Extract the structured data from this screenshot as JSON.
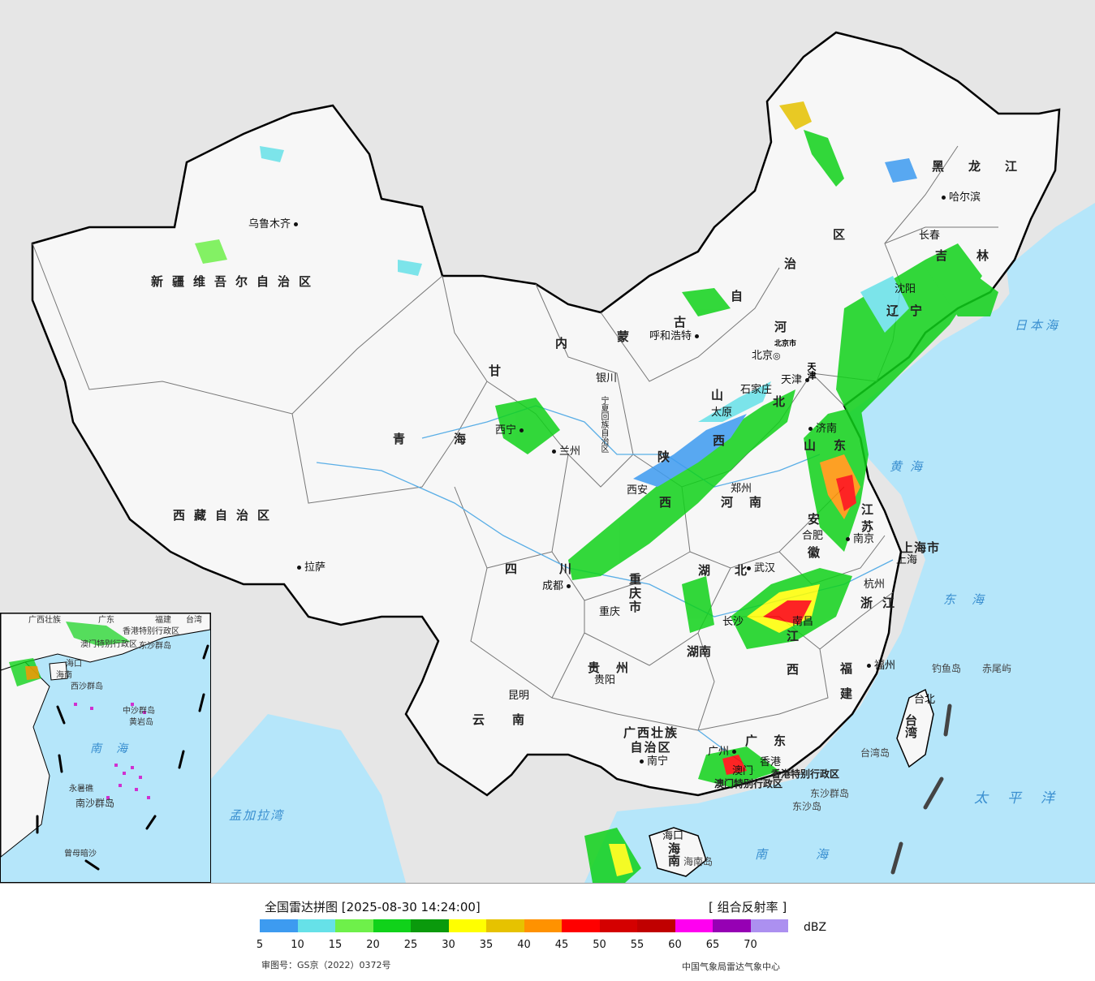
{
  "legend": {
    "title": "全国雷达拼图 [2025-08-30 14:24:00]",
    "product": "[ 组合反射率 ]",
    "unit": "dBZ",
    "ticks": [
      "5",
      "10",
      "15",
      "20",
      "25",
      "30",
      "35",
      "40",
      "45",
      "50",
      "55",
      "60",
      "65",
      "70"
    ],
    "colors": [
      "#3d9bf0",
      "#66e1e8",
      "#6ef04a",
      "#10d21a",
      "#0a9a0c",
      "#ffff00",
      "#e6c200",
      "#ff9200",
      "#ff0000",
      "#d40000",
      "#c00000",
      "#ff00f0",
      "#9600b4",
      "#ac90f0"
    ],
    "approval": "审图号：GS京（2022）0372号",
    "source": "中国气象局雷达气象中心"
  },
  "colors": {
    "land": "#f7f7f7",
    "outside": "#e6e6e6",
    "sea": "#b5e6fa",
    "border": "#000000",
    "province_border": "#777777",
    "river": "#5aaee6"
  },
  "provinces": {
    "xinjiang": "新疆维吾尔自治区",
    "xizang": "西藏自治区",
    "qinghai": "青海",
    "neimenggu_1": "内",
    "neimenggu_2": "蒙",
    "neimenggu_3": "古",
    "neimenggu_4": "自",
    "neimenggu_5": "治",
    "neimenggu_6": "区",
    "heilongjiang": "黑龙江",
    "jilin": "吉林",
    "liaoning": "辽宁",
    "gansu": "甘",
    "ningxia": "宁夏回族自治区",
    "shaanxi": "陕",
    "shaanxi2": "西",
    "shanxi": "山",
    "shanxi2": "西",
    "hebei": "河",
    "hebei2": "北",
    "shandong": "山东",
    "henan": "河南",
    "jiangsu": "江苏",
    "anhui": "安徽",
    "hubei": "湖北",
    "hunan": "湖南",
    "jiangxi": "江西",
    "zhejiang": "浙江",
    "fujian": "福建",
    "guangdong": "广东",
    "guangxi": "广西壮族自治区",
    "guizhou": "贵州",
    "yunnan": "云南",
    "sichuan": "四川",
    "chongqing": "重庆市",
    "hainan": "海南",
    "taiwan": "台湾",
    "shanghai": "上海市",
    "tianjin": "天津",
    "beijing": "北京市",
    "hongkong": "香港特别行政区",
    "macau": "澳门特别行政区"
  },
  "cities": {
    "urumqi": "乌鲁木齐",
    "lhasa": "拉萨",
    "xining": "西宁",
    "lanzhou": "兰州",
    "yinchuan": "银川",
    "hohhot": "呼和浩特",
    "beijing": "北京",
    "tianjin": "天津",
    "shijiazhuang": "石家庄",
    "taiyuan": "太原",
    "xian": "西安",
    "zhengzhou": "郑州",
    "jinan": "济南",
    "harbin": "哈尔滨",
    "changchun": "长春",
    "shenyang": "沈阳",
    "hefei": "合肥",
    "nanjing": "南京",
    "shanghai": "上海",
    "hangzhou": "杭州",
    "wuhan": "武汉",
    "changsha": "长沙",
    "nanchang": "南昌",
    "fuzhou": "福州",
    "taipei": "台北",
    "guangzhou": "广州",
    "hongkong": "香港",
    "macau": "澳门",
    "nanning": "南宁",
    "haikou": "海口",
    "guiyang": "贵阳",
    "kunming": "昆明",
    "chengdu": "成都",
    "chongqing": "重庆"
  },
  "seas": {
    "huanghai": "黄海",
    "donghai": "东海",
    "nanhai": "南海",
    "taipingyang": "太平洋",
    "ribenhai": "日本海",
    "mengjiala": "孟加拉湾",
    "inset_nanhai": "南海"
  },
  "islands": {
    "diaoyu": "钓鱼岛",
    "chiwei": "赤尾屿",
    "dongsha": "东沙群岛",
    "dongsha2": "东沙岛",
    "taiwan_island": "台湾岛",
    "hainan_island": "海南岛",
    "inset_xisha": "西沙群岛",
    "inset_zhongsha": "中沙群岛",
    "inset_huangyan": "黄岩岛",
    "inset_yongshu": "永暑礁",
    "inset_nansha": "南沙群岛",
    "inset_zengmu": "曾母暗沙",
    "inset_haikou": "海口",
    "inset_hainan": "海南",
    "inset_dongsha": "东沙群岛",
    "inset_taiwan": "台湾",
    "inset_guangdong": "广东",
    "inset_guangxi": "广西壮族",
    "inset_hongkong": "香港特别行政区",
    "inset_macau": "澳门特别行政区",
    "inset_fujian": "福建"
  }
}
